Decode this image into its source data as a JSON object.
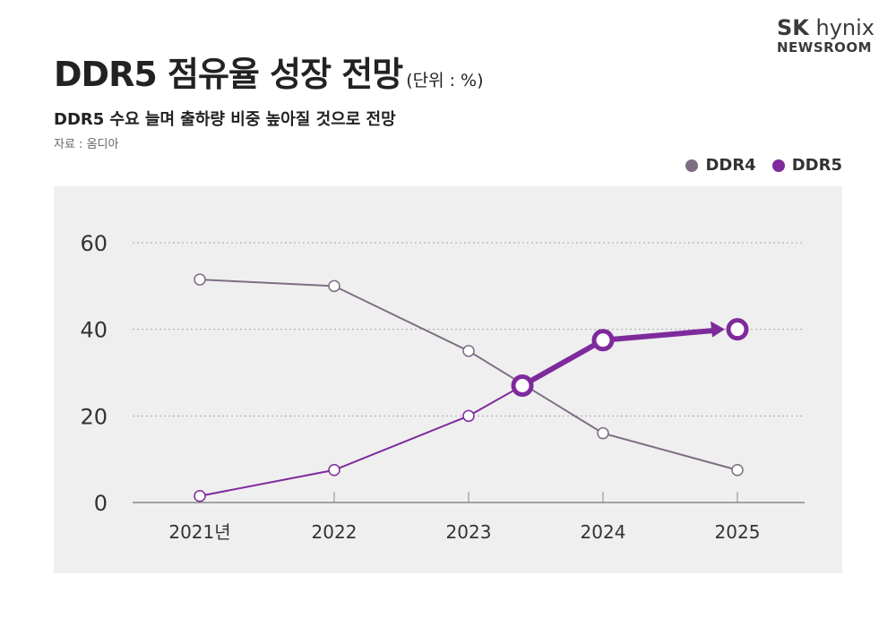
{
  "header": {
    "title": "DDR5 점유율 성장 전망",
    "unit": "(단위 : %)",
    "subtitle": "DDR5 수요 늘며 출하량 비중 높아질 것으로 전망",
    "source": "자료 : 옴디아"
  },
  "logo": {
    "brand_bold": "SK",
    "brand_rest": "hynix",
    "sub": "NEWSROOM"
  },
  "colors": {
    "ddr4": "#7d6e82",
    "ddr5": "#7e2a9c",
    "panel": "#efefef"
  },
  "chart_data": {
    "type": "line",
    "categories": [
      "2021년",
      "2022",
      "2023",
      "2024",
      "2025"
    ],
    "y_ticks": [
      "0",
      "20",
      "40",
      "60"
    ],
    "ylim": [
      0,
      60
    ],
    "grid": true,
    "legend_position": "top-right",
    "series": [
      {
        "name": "DDR4",
        "values": [
          51.5,
          50,
          35,
          16,
          7.5
        ]
      },
      {
        "name": "DDR5",
        "values": [
          1.5,
          7.5,
          20,
          37.5,
          40
        ]
      }
    ],
    "crossover": {
      "x": 2023.4,
      "value": 27
    }
  }
}
